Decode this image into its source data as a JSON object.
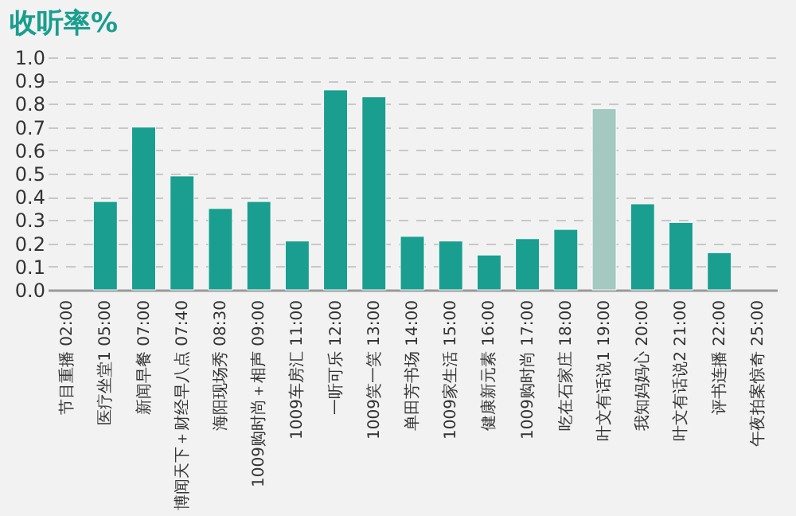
{
  "chart_data": {
    "type": "bar",
    "title": "收听率%",
    "categories": [
      "节目重播 02:00",
      "医疗坐堂1 05:00",
      "新闻早餐 07:00",
      "博闻天下＋财经早八点 07:40",
      "海阳现场秀 08:30",
      "1009购时尚＋相声 09:00",
      "1009车房汇 11:00",
      "一听可乐 12:00",
      "1009笑一笑 13:00",
      "单田芳书场 14:00",
      "1009家生活 15:00",
      "健康新元素 16:00",
      "1009购时尚 17:00",
      "吃在石家庄 18:00",
      "叶文有话说1 19:00",
      "我知妈妈心 20:00",
      "叶文有话说2 21:00",
      "评书连播 22:00",
      "午夜拍案惊奇 25:00"
    ],
    "values": [
      null,
      0.38,
      0.7,
      0.49,
      0.35,
      0.38,
      0.21,
      0.86,
      0.83,
      0.23,
      0.21,
      0.15,
      0.22,
      0.26,
      0.78,
      0.37,
      0.29,
      0.16,
      null
    ],
    "colors": [
      "#1a9e8f",
      "#1a9e8f",
      "#1a9e8f",
      "#1a9e8f",
      "#1a9e8f",
      "#1a9e8f",
      "#1a9e8f",
      "#1a9e8f",
      "#1a9e8f",
      "#1a9e8f",
      "#1a9e8f",
      "#1a9e8f",
      "#1a9e8f",
      "#1a9e8f",
      "#a3c9c0",
      "#1a9e8f",
      "#1a9e8f",
      "#1a9e8f",
      "#1a9e8f"
    ],
    "ylim": [
      0,
      1.0
    ],
    "yticks": [
      {
        "value": 0,
        "label": "0.0"
      },
      {
        "value": 0.1,
        "label": "0.1"
      },
      {
        "value": 0.2,
        "label": "0.2"
      },
      {
        "value": 0.3,
        "label": "0.3"
      },
      {
        "value": 0.4,
        "label": "0.4"
      },
      {
        "value": 0.5,
        "label": "0.5"
      },
      {
        "value": 0.6,
        "label": "0.6"
      },
      {
        "value": 0.7,
        "label": "0.7"
      },
      {
        "value": 0.8,
        "label": "0.8"
      },
      {
        "value": 0.9,
        "label": "0.9"
      },
      {
        "value": 1.0,
        "label": "1.0"
      }
    ],
    "grid": "y"
  }
}
